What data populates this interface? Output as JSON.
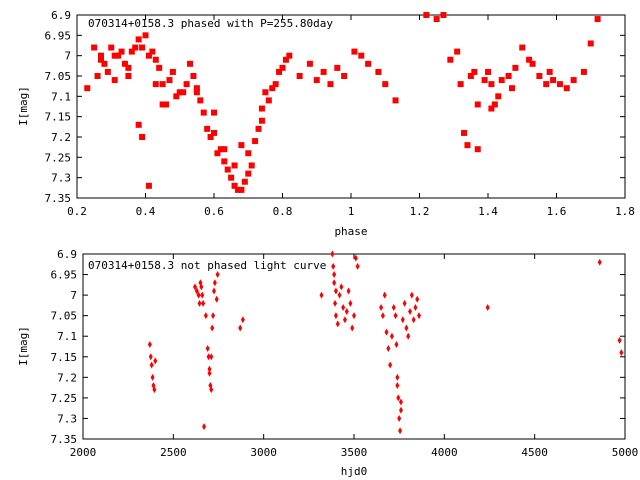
{
  "chart_data": [
    {
      "type": "scatter",
      "title": "070314+0158.3 phased with P=255.80day",
      "xlabel": "phase",
      "ylabel": "I[mag]",
      "xlim": [
        0.2,
        1.8
      ],
      "ylim": [
        6.9,
        7.35
      ],
      "y_inverted": true,
      "grid": false,
      "marker": "square",
      "x_ticks": [
        "0.2",
        "0.4",
        "0.6",
        "0.8",
        "1",
        "1.2",
        "1.4",
        "1.6",
        "1.8"
      ],
      "y_ticks": [
        "6.9",
        "6.95",
        "7",
        "7.05",
        "7.1",
        "7.15",
        "7.2",
        "7.25",
        "7.3",
        "7.35"
      ],
      "color": "#ff0000",
      "x": [
        0.23,
        0.25,
        0.26,
        0.27,
        0.28,
        0.29,
        0.3,
        0.31,
        0.32,
        0.33,
        0.34,
        0.35,
        0.36,
        0.37,
        0.38,
        0.39,
        0.4,
        0.41,
        0.42,
        0.43,
        0.44,
        0.45,
        0.46,
        0.47,
        0.48,
        0.49,
        0.5,
        0.51,
        0.52,
        0.53,
        0.54,
        0.55,
        0.56,
        0.57,
        0.58,
        0.59,
        0.6,
        0.61,
        0.62,
        0.63,
        0.64,
        0.65,
        0.66,
        0.67,
        0.68,
        0.69,
        0.7,
        0.71,
        0.72,
        0.73,
        0.74,
        0.75,
        0.76,
        0.77,
        0.78,
        0.79,
        0.8,
        0.81,
        0.82,
        0.85,
        0.88,
        0.9,
        0.92,
        0.94,
        0.96,
        0.98,
        1.01,
        1.03,
        1.05,
        1.08,
        1.1,
        1.13,
        1.22,
        1.25,
        1.27,
        1.29,
        1.31,
        1.32,
        1.33,
        1.34,
        1.35,
        1.36,
        1.37,
        1.39,
        1.4,
        1.41,
        1.42,
        1.43,
        1.44,
        1.46,
        1.48,
        1.5,
        1.52,
        1.55,
        1.57,
        1.59,
        1.61,
        1.63,
        1.65,
        1.68,
        1.7,
        1.72,
        0.38,
        0.39,
        0.43,
        0.41,
        0.63,
        0.66,
        0.68,
        0.27,
        0.31,
        0.35,
        0.45,
        0.55,
        0.6,
        0.7,
        0.74,
        1.37,
        1.41,
        1.47,
        1.53,
        1.58
      ],
      "y": [
        7.08,
        6.98,
        7.05,
        7.0,
        7.02,
        7.04,
        6.98,
        7.06,
        7.0,
        6.99,
        7.02,
        7.03,
        6.99,
        6.98,
        6.96,
        6.98,
        6.95,
        7.0,
        6.99,
        7.01,
        7.03,
        7.07,
        7.12,
        7.06,
        7.04,
        7.1,
        7.09,
        7.09,
        7.07,
        7.02,
        7.05,
        7.09,
        7.11,
        7.14,
        7.18,
        7.2,
        7.19,
        7.24,
        7.23,
        7.26,
        7.28,
        7.3,
        7.32,
        7.33,
        7.33,
        7.31,
        7.29,
        7.27,
        7.21,
        7.18,
        7.13,
        7.09,
        7.11,
        7.08,
        7.07,
        7.04,
        7.03,
        7.01,
        7.0,
        7.05,
        7.02,
        7.06,
        7.04,
        7.07,
        7.03,
        7.05,
        6.99,
        7.0,
        7.02,
        7.04,
        7.07,
        7.11,
        6.9,
        6.91,
        6.9,
        7.01,
        6.99,
        7.07,
        7.19,
        7.22,
        7.05,
        7.04,
        7.12,
        7.06,
        7.04,
        7.07,
        7.12,
        7.1,
        7.06,
        7.05,
        7.03,
        6.98,
        7.01,
        7.05,
        7.07,
        7.06,
        7.07,
        7.08,
        7.06,
        7.04,
        6.97,
        6.91,
        7.17,
        7.2,
        7.07,
        7.32,
        7.23,
        7.27,
        7.22,
        7.01,
        7.0,
        7.05,
        7.12,
        7.08,
        7.14,
        7.24,
        7.16,
        7.23,
        7.13,
        7.08,
        7.02,
        7.04
      ]
    },
    {
      "type": "scatter",
      "title": "070314+0158.3 not phased light curve",
      "xlabel": "hjd0",
      "ylabel": "I[mag]",
      "xlim": [
        2000,
        5000
      ],
      "ylim": [
        6.9,
        7.35
      ],
      "y_inverted": true,
      "grid": false,
      "marker": "diamond",
      "x_ticks": [
        "2000",
        "2500",
        "3000",
        "3500",
        "4000",
        "4500",
        "5000"
      ],
      "y_ticks": [
        "6.9",
        "6.95",
        "7",
        "7.05",
        "7.1",
        "7.15",
        "7.2",
        "7.25",
        "7.3",
        "7.35"
      ],
      "color": "#ff0000",
      "x": [
        2370,
        2375,
        2380,
        2385,
        2390,
        2395,
        2400,
        2620,
        2630,
        2640,
        2645,
        2650,
        2655,
        2660,
        2665,
        2670,
        2680,
        2690,
        2695,
        2700,
        2705,
        2710,
        2715,
        2720,
        2725,
        2730,
        2740,
        2745,
        2870,
        2885,
        3320,
        3380,
        3385,
        3390,
        3395,
        3400,
        3410,
        3420,
        3430,
        3440,
        3450,
        3460,
        3470,
        3480,
        3490,
        3500,
        3510,
        3520,
        3650,
        3660,
        3670,
        3680,
        3690,
        3700,
        3710,
        3720,
        3730,
        3735,
        3740,
        3745,
        3750,
        3755,
        3760,
        3770,
        3780,
        3790,
        3800,
        3810,
        3820,
        3830,
        3840,
        3850,
        3860,
        4240,
        4860,
        4970,
        4980,
        2700,
        2710,
        3740,
        3760,
        3390,
        3400
      ],
      "y": [
        7.12,
        7.15,
        7.17,
        7.2,
        7.22,
        7.23,
        7.16,
        6.98,
        6.99,
        7.0,
        7.02,
        6.97,
        6.98,
        7.0,
        7.02,
        7.32,
        7.05,
        7.13,
        7.15,
        7.19,
        7.22,
        7.23,
        7.08,
        7.05,
        6.99,
        6.97,
        7.01,
        6.95,
        7.08,
        7.06,
        7.0,
        6.9,
        6.93,
        6.97,
        7.02,
        7.05,
        7.07,
        7.0,
        6.98,
        7.03,
        7.06,
        7.04,
        6.99,
        7.02,
        7.08,
        7.05,
        6.91,
        6.93,
        7.03,
        7.05,
        7.0,
        7.09,
        7.13,
        7.17,
        7.1,
        7.03,
        7.05,
        7.12,
        7.2,
        7.25,
        7.3,
        7.33,
        7.28,
        7.06,
        7.02,
        7.08,
        7.1,
        7.04,
        7.0,
        7.06,
        7.03,
        7.01,
        7.05,
        7.03,
        6.92,
        7.11,
        7.14,
        7.18,
        7.15,
        7.22,
        7.26,
        6.95,
        6.99
      ]
    }
  ]
}
